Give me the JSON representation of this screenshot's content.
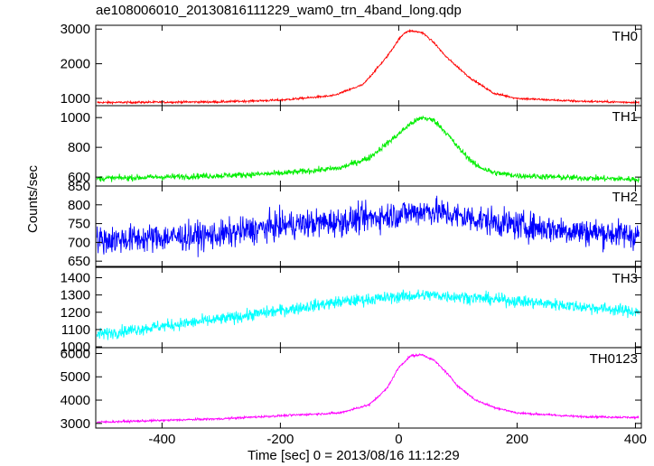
{
  "chart_data": {
    "type": "line",
    "title": "ae108006010_20130816111229_wam0_trn_4band_long.qdp",
    "ylabel": "Counts/sec",
    "xlabel": "Time [sec] 0 = 2013/08/16 11:12:29",
    "xlim": [
      -512,
      410
    ],
    "xticks": [
      -400,
      -200,
      0,
      200,
      400
    ],
    "grid": false,
    "panels": [
      {
        "name": "TH0",
        "color": "#ff0000",
        "ylim": [
          790,
          3110
        ],
        "yticks": [
          1000,
          2000,
          3000
        ],
        "noise": 30,
        "profile_x": [
          -512,
          -300,
          -200,
          -110,
          -60,
          -20,
          0,
          10,
          20,
          40,
          60,
          80,
          100,
          120,
          160,
          200,
          300,
          410
        ],
        "profile_y": [
          880,
          900,
          950,
          1080,
          1400,
          2200,
          2700,
          2900,
          2950,
          2900,
          2600,
          2200,
          1900,
          1600,
          1150,
          1000,
          920,
          880
        ]
      },
      {
        "name": "TH1",
        "color": "#00ee00",
        "ylim": [
          540,
          1080
        ],
        "yticks": [
          600,
          800,
          1000
        ],
        "noise": 20,
        "profile_x": [
          -512,
          -300,
          -200,
          -100,
          -50,
          0,
          20,
          40,
          60,
          80,
          100,
          130,
          160,
          200,
          300,
          410
        ],
        "profile_y": [
          590,
          610,
          625,
          660,
          730,
          890,
          960,
          1000,
          980,
          900,
          800,
          680,
          630,
          610,
          595,
          585
        ]
      },
      {
        "name": "TH2",
        "color": "#0000ff",
        "ylim": [
          636,
          850
        ],
        "yticks": [
          650,
          700,
          750,
          800,
          850
        ],
        "noise": 38,
        "profile_x": [
          -512,
          -300,
          -200,
          -100,
          0,
          50,
          100,
          200,
          300,
          410
        ],
        "profile_y": [
          705,
          720,
          745,
          755,
          775,
          785,
          770,
          745,
          730,
          718
        ]
      },
      {
        "name": "TH3",
        "color": "#00ffff",
        "ylim": [
          995,
          1460
        ],
        "yticks": [
          1000,
          1100,
          1200,
          1300,
          1400
        ],
        "noise": 35,
        "profile_x": [
          -512,
          -400,
          -300,
          -200,
          -100,
          0,
          50,
          100,
          200,
          300,
          410
        ],
        "profile_y": [
          1070,
          1120,
          1160,
          1210,
          1260,
          1290,
          1300,
          1290,
          1265,
          1235,
          1200
        ]
      },
      {
        "name": "TH0123",
        "color": "#ff00ff",
        "ylim": [
          2800,
          6250
        ],
        "yticks": [
          3000,
          4000,
          5000,
          6000
        ],
        "noise": 45,
        "profile_x": [
          -512,
          -300,
          -200,
          -100,
          -50,
          -20,
          0,
          20,
          40,
          60,
          80,
          100,
          130,
          160,
          200,
          300,
          410
        ],
        "profile_y": [
          3050,
          3200,
          3330,
          3450,
          3800,
          4500,
          5400,
          5900,
          5950,
          5700,
          5200,
          4600,
          4000,
          3700,
          3450,
          3300,
          3250
        ]
      }
    ]
  }
}
